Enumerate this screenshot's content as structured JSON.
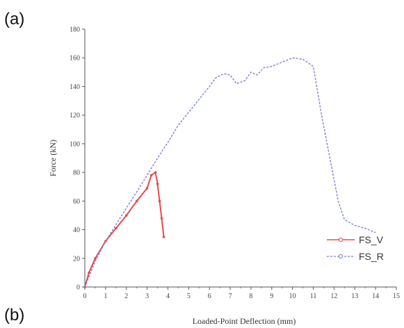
{
  "panel_labels": {
    "top": "(a)",
    "bottom": "(b)"
  },
  "chart_data": {
    "type": "line",
    "xlabel": "Loaded-Point Deflection (mm)",
    "ylabel": "Force (kN)",
    "xlim": [
      0,
      15
    ],
    "ylim": [
      0,
      180
    ],
    "x_ticks": [
      0,
      1,
      2,
      3,
      4,
      5,
      6,
      7,
      8,
      9,
      10,
      11,
      12,
      13,
      14,
      15
    ],
    "y_ticks": [
      0,
      20,
      40,
      60,
      80,
      100,
      120,
      140,
      160,
      180
    ],
    "grid": false,
    "legend_position": "bottom-right",
    "series": [
      {
        "name": "FS_V",
        "color": "#e84a4a",
        "style": "solid-with-markers",
        "points": [
          [
            0,
            0
          ],
          [
            0.2,
            10
          ],
          [
            0.5,
            20
          ],
          [
            1,
            32
          ],
          [
            1.5,
            41
          ],
          [
            2,
            50
          ],
          [
            2.5,
            60
          ],
          [
            3,
            69
          ],
          [
            3.2,
            78
          ],
          [
            3.4,
            80
          ],
          [
            3.5,
            72
          ],
          [
            3.6,
            60
          ],
          [
            3.7,
            48
          ],
          [
            3.8,
            35
          ]
        ]
      },
      {
        "name": "FS_R",
        "color": "#7b7fd6",
        "style": "dashed",
        "points": [
          [
            0,
            0
          ],
          [
            0.5,
            18
          ],
          [
            1,
            32
          ],
          [
            2,
            55
          ],
          [
            3,
            78
          ],
          [
            3.5,
            90
          ],
          [
            4,
            101
          ],
          [
            4.5,
            113
          ],
          [
            5,
            122
          ],
          [
            5.5,
            131
          ],
          [
            6,
            140
          ],
          [
            6.3,
            146
          ],
          [
            6.7,
            149
          ],
          [
            7,
            148
          ],
          [
            7.3,
            142
          ],
          [
            7.7,
            144
          ],
          [
            8,
            150
          ],
          [
            8.3,
            148
          ],
          [
            8.6,
            153
          ],
          [
            9,
            154
          ],
          [
            9.5,
            157
          ],
          [
            10,
            160
          ],
          [
            10.5,
            159
          ],
          [
            11,
            154
          ],
          [
            11.4,
            120
          ],
          [
            11.8,
            90
          ],
          [
            12.2,
            60
          ],
          [
            12.5,
            47
          ],
          [
            13,
            43
          ],
          [
            13.5,
            41
          ],
          [
            14,
            38
          ]
        ]
      }
    ]
  }
}
